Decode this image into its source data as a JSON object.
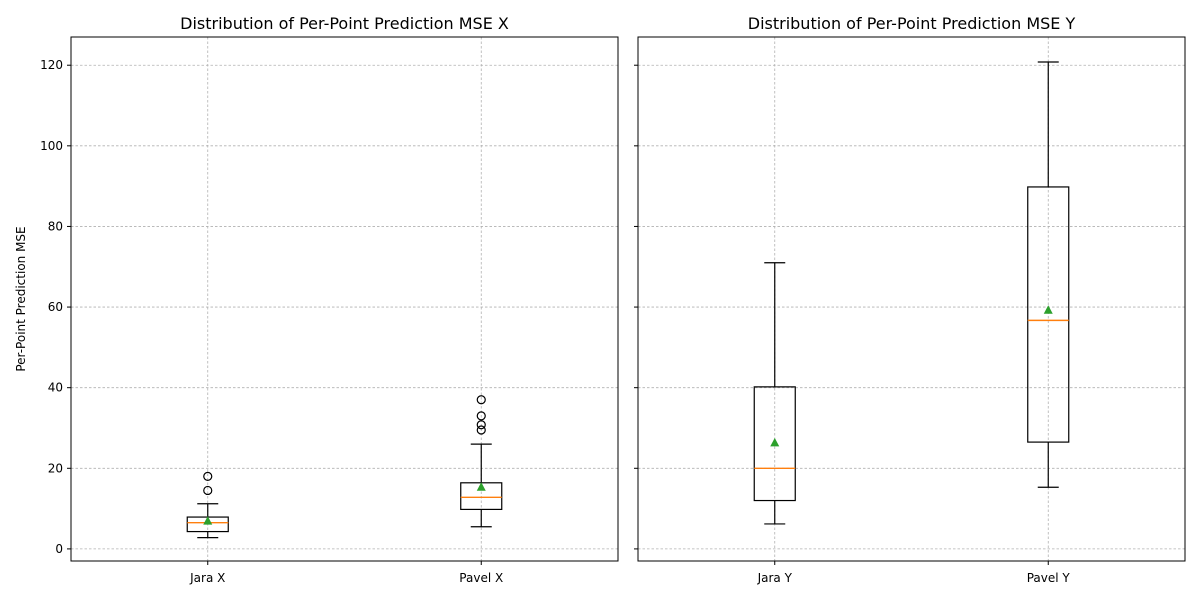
{
  "chart_data": [
    {
      "type": "box",
      "title": "Distribution of Per-Point Prediction MSE X",
      "ylabel": "Per-Point Prediction MSE",
      "ylim": [
        -3,
        127
      ],
      "yticks": [
        0,
        20,
        40,
        60,
        80,
        100,
        120
      ],
      "grid": true,
      "median_color": "#ff7f0e",
      "mean_color": "#2ca02c",
      "categories": [
        "Jara X",
        "Pavel X"
      ],
      "boxes": [
        {
          "label": "Jara X",
          "whislo": 2.8,
          "q1": 4.3,
          "med": 6.5,
          "q3": 7.9,
          "whishi": 11.2,
          "mean": 6.9,
          "fliers": [
            14.5,
            18.0
          ]
        },
        {
          "label": "Pavel X",
          "whislo": 5.5,
          "q1": 9.8,
          "med": 12.8,
          "q3": 16.4,
          "whishi": 26.0,
          "mean": 15.3,
          "fliers": [
            29.5,
            30.8,
            33.0,
            37.0
          ]
        }
      ]
    },
    {
      "type": "box",
      "title": "Distribution of Per-Point Prediction MSE Y",
      "ylabel": "",
      "ylim": [
        -3,
        127
      ],
      "yticks": [
        0,
        20,
        40,
        60,
        80,
        100,
        120
      ],
      "grid": true,
      "median_color": "#ff7f0e",
      "mean_color": "#2ca02c",
      "categories": [
        "Jara Y",
        "Pavel Y"
      ],
      "boxes": [
        {
          "label": "Jara Y",
          "whislo": 6.2,
          "q1": 12.0,
          "med": 20.0,
          "q3": 40.2,
          "whishi": 71.0,
          "mean": 26.3,
          "fliers": []
        },
        {
          "label": "Pavel Y",
          "whislo": 15.3,
          "q1": 26.5,
          "med": 56.7,
          "q3": 89.8,
          "whishi": 120.8,
          "mean": 59.2,
          "fliers": []
        }
      ]
    }
  ]
}
